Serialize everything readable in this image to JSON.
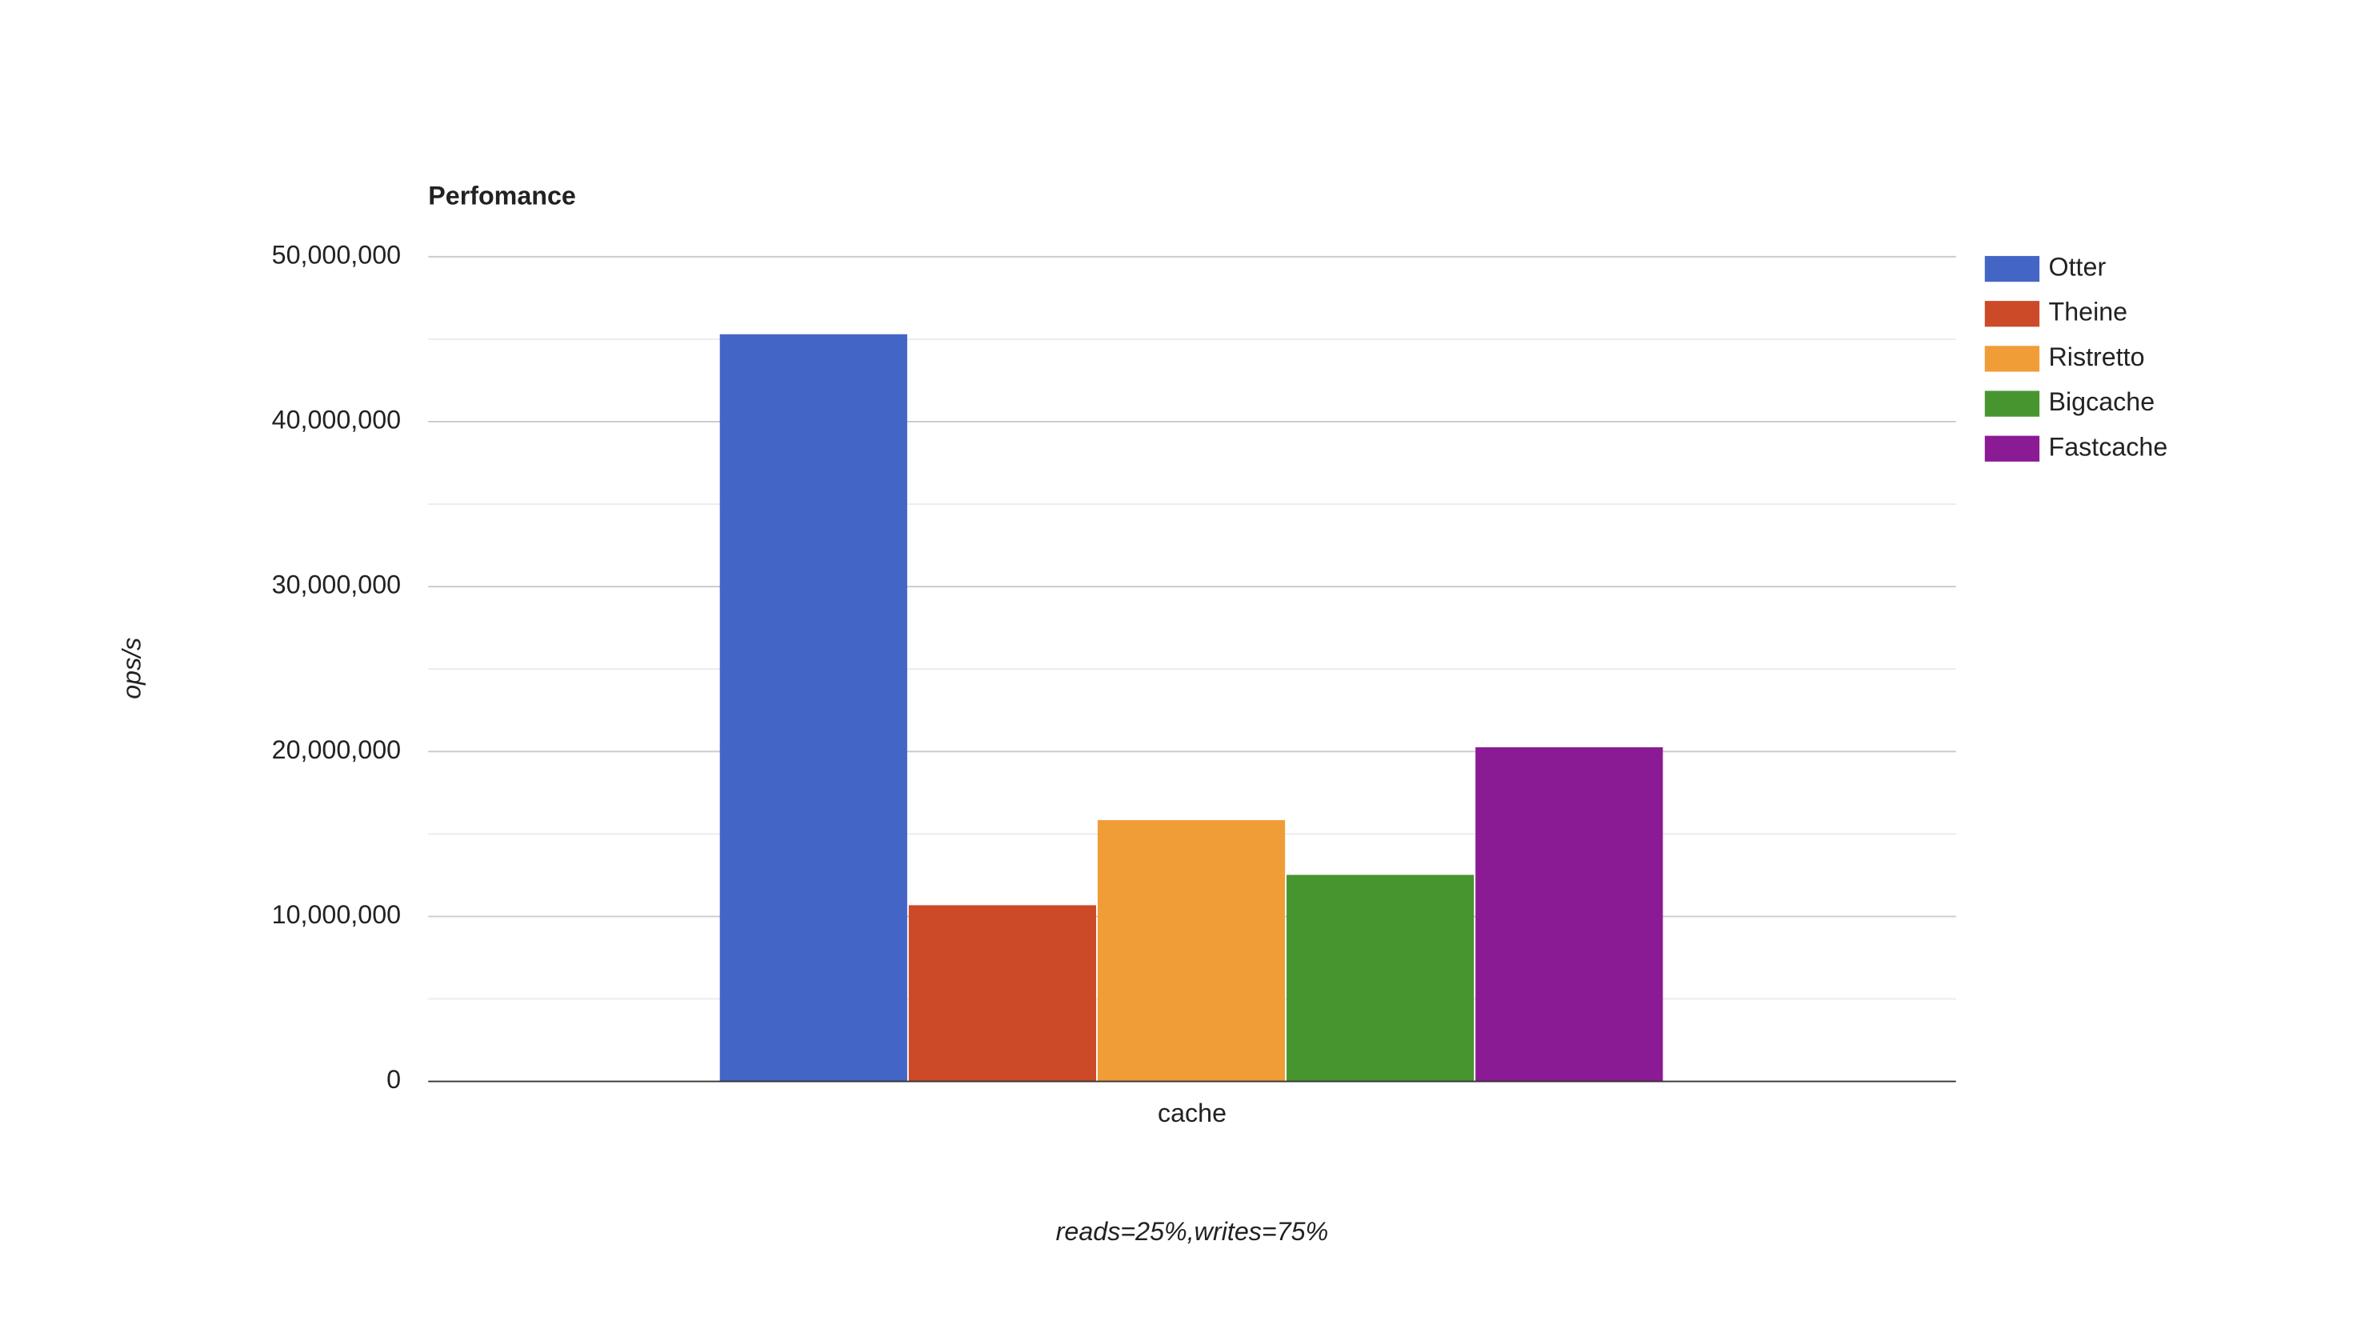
{
  "chart_data": {
    "type": "bar",
    "title": "Perfomance",
    "xlabel": "reads=25%,writes=75%",
    "ylabel": "ops/s",
    "categories": [
      "cache"
    ],
    "series": [
      {
        "name": "Otter",
        "color": "#4366c6",
        "values": [
          45300000
        ]
      },
      {
        "name": "Theine",
        "color": "#cc4a28",
        "values": [
          10680000
        ]
      },
      {
        "name": "Ristretto",
        "color": "#f09d38",
        "values": [
          15840000
        ]
      },
      {
        "name": "Bigcache",
        "color": "#47952f",
        "values": [
          12520000
        ]
      },
      {
        "name": "Fastcache",
        "color": "#8b1b95",
        "values": [
          20260000
        ]
      }
    ],
    "ylim": [
      0,
      50000000
    ],
    "yticks": [
      0,
      {
        "value": 10000000,
        "label": "10,000,000"
      },
      {
        "value": 20000000,
        "label": "20,000,000"
      },
      {
        "value": 30000000,
        "label": "30,000,000"
      },
      {
        "value": 40000000,
        "label": "40,000,000"
      },
      {
        "value": 50000000,
        "label": "50,000,000"
      }
    ],
    "grid": true,
    "minor_grid": true,
    "legend": "right"
  }
}
